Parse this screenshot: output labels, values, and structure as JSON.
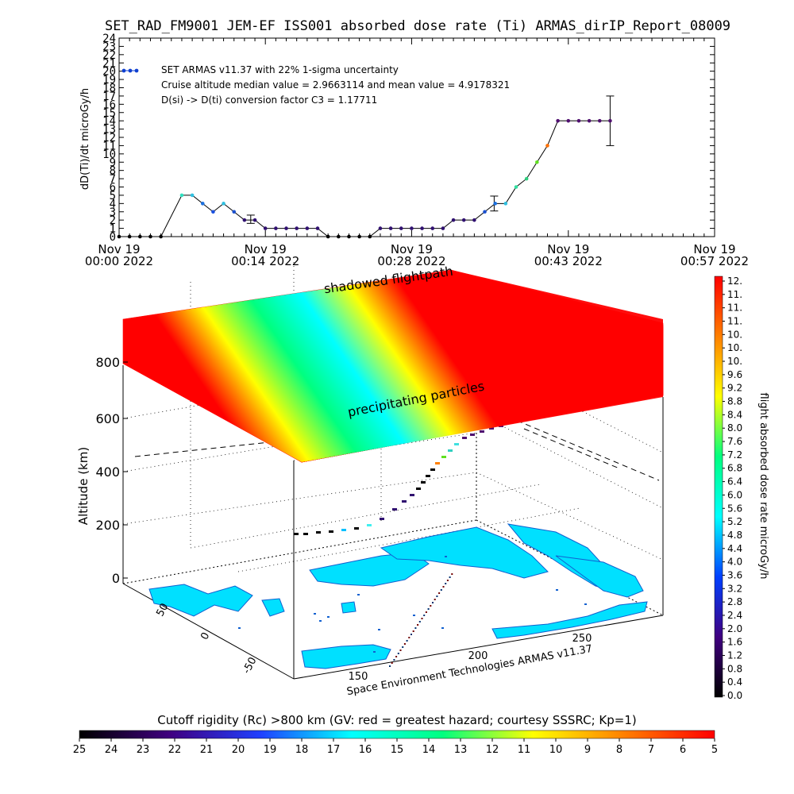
{
  "title": "SET_RAD_FM9001  JEM-EF ISS001 absorbed dose rate (Ti) ARMAS_dirIP_Report_08009",
  "chart_data": [
    {
      "type": "scatter",
      "ylabel": "dD(Ti)/dt microGy/h",
      "ylim": [
        0,
        24
      ],
      "yticks": [
        "0",
        "1",
        "2",
        "3",
        "4",
        "5",
        "6",
        "7",
        "8",
        "9",
        "10",
        "11",
        "12",
        "13",
        "14",
        "15",
        "16",
        "17",
        "18",
        "19",
        "20",
        "21",
        "22",
        "23",
        "24"
      ],
      "xlim": [
        0,
        57
      ],
      "xticks": [
        {
          "v": 0,
          "l1": "Nov 19",
          "l2": "00:00 2022"
        },
        {
          "v": 14,
          "l1": "Nov 19",
          "l2": "00:14 2022"
        },
        {
          "v": 28,
          "l1": "Nov 19",
          "l2": "00:28 2022"
        },
        {
          "v": 43,
          "l1": "Nov 19",
          "l2": "00:43 2022"
        },
        {
          "v": 57,
          "l1": "Nov 19",
          "l2": "00:57 2022"
        }
      ],
      "legend": [
        "SET ARMAS v11.37 with 22% 1-sigma uncertainty",
        "Cruise altitude median value = 2.9663114 and mean value = 4.9178321",
        "D(si) -> D(ti) conversion factor C3 = 1.17711"
      ],
      "legend_color": "#1040d0",
      "points": [
        [
          0,
          0,
          "#000000"
        ],
        [
          1,
          0,
          "#000000"
        ],
        [
          2,
          0,
          "#000000"
        ],
        [
          3,
          0,
          "#000000"
        ],
        [
          4,
          0,
          "#000000"
        ],
        [
          6,
          5,
          "#30e0c0"
        ],
        [
          7,
          5,
          "#30c0e0"
        ],
        [
          8,
          4,
          "#1a70e0"
        ],
        [
          9,
          3,
          "#1a50e0"
        ],
        [
          10,
          4,
          "#30c0e0"
        ],
        [
          11,
          3,
          "#1a50d0"
        ],
        [
          12,
          2,
          "#301070"
        ],
        [
          13,
          2,
          "#301070"
        ],
        [
          14,
          1,
          "#301070"
        ],
        [
          15,
          1,
          "#301070"
        ],
        [
          16,
          1,
          "#301070"
        ],
        [
          17,
          1,
          "#301070"
        ],
        [
          18,
          1,
          "#301070"
        ],
        [
          19,
          1,
          "#301070"
        ],
        [
          20,
          0,
          "#000000"
        ],
        [
          21,
          0,
          "#000000"
        ],
        [
          22,
          0,
          "#000000"
        ],
        [
          23,
          0,
          "#000000"
        ],
        [
          24,
          0,
          "#000000"
        ],
        [
          25,
          1,
          "#301070"
        ],
        [
          26,
          1,
          "#301070"
        ],
        [
          27,
          1,
          "#301070"
        ],
        [
          28,
          1,
          "#301070"
        ],
        [
          29,
          1,
          "#301070"
        ],
        [
          30,
          1,
          "#301070"
        ],
        [
          31,
          1,
          "#301070"
        ],
        [
          32,
          2,
          "#301070"
        ],
        [
          33,
          2,
          "#301070"
        ],
        [
          34,
          2,
          "#301070"
        ],
        [
          35,
          3,
          "#1a50d0"
        ],
        [
          36,
          4,
          "#1a70e0"
        ],
        [
          37,
          4,
          "#30c0e0"
        ],
        [
          38,
          6,
          "#30e0a0"
        ],
        [
          39,
          7,
          "#30d080"
        ],
        [
          40,
          9,
          "#60e020"
        ],
        [
          41,
          11,
          "#ff7000"
        ],
        [
          42,
          14,
          "#501070"
        ],
        [
          43,
          14,
          "#501070"
        ],
        [
          44,
          14,
          "#501070"
        ],
        [
          45,
          14,
          "#501070"
        ],
        [
          46,
          14,
          "#501070"
        ],
        [
          47,
          14,
          "#501070"
        ]
      ],
      "error_bars": [
        {
          "x": 12.6,
          "lo": 1.6,
          "hi": 2.6
        },
        {
          "x": 35.9,
          "lo": 3.1,
          "hi": 4.9
        },
        {
          "x": 47,
          "lo": 11,
          "hi": 17
        }
      ]
    },
    {
      "type": "heatmap",
      "ylabel": "Altitude (km)",
      "zticks": [
        "0",
        "200",
        "400",
        "600",
        "800"
      ],
      "lat_ticks": [
        "50",
        "0",
        "-50"
      ],
      "lon_ticks": [
        "150",
        "200",
        "250"
      ],
      "band_labels": [
        "shadowed flightpath",
        "precipitating particles"
      ],
      "band_colors": [
        "#ff0000",
        "#ff0000",
        "#ffff00",
        "#00ff80",
        "#00ffff",
        "#ffff00",
        "#ff0000",
        "#ff0000"
      ],
      "credit": "Space Environment Technologies ARMAS v11.37",
      "land_color": "#00e0ff"
    }
  ],
  "dose_scale": {
    "label": "flight absorbed dose rate microGy/h",
    "ticks": [
      "12.",
      "11.",
      "11.",
      "11.",
      "10.",
      "10.",
      "10.",
      "9.6",
      "9.2",
      "8.8",
      "8.4",
      "8.0",
      "7.6",
      "7.2",
      "6.8",
      "6.4",
      "6.0",
      "5.6",
      "5.2",
      "4.8",
      "4.4",
      "4.0",
      "3.6",
      "3.2",
      "2.8",
      "2.4",
      "2.0",
      "1.6",
      "1.2",
      "0.8",
      "0.4",
      "0.0"
    ],
    "colors": [
      "#ff0000",
      "#ff8000",
      "#ffff00",
      "#00ff80",
      "#00ffff",
      "#0040ff",
      "#400080",
      "#000000"
    ]
  },
  "cutoff_scale": {
    "label": "Cutoff rigidity (Rc) >800 km (GV: red = greatest hazard; courtesy SSSRC; Kp=1)",
    "ticks": [
      "25",
      "24",
      "23",
      "22",
      "21",
      "20",
      "19",
      "18",
      "17",
      "16",
      "15",
      "14",
      "13",
      "12",
      "11",
      "10",
      "9",
      "8",
      "7",
      "6",
      "5"
    ],
    "colors": [
      "#000000",
      "#400080",
      "#2040ff",
      "#00ffff",
      "#00ff80",
      "#ffff00",
      "#ff8000",
      "#ff0000"
    ]
  }
}
